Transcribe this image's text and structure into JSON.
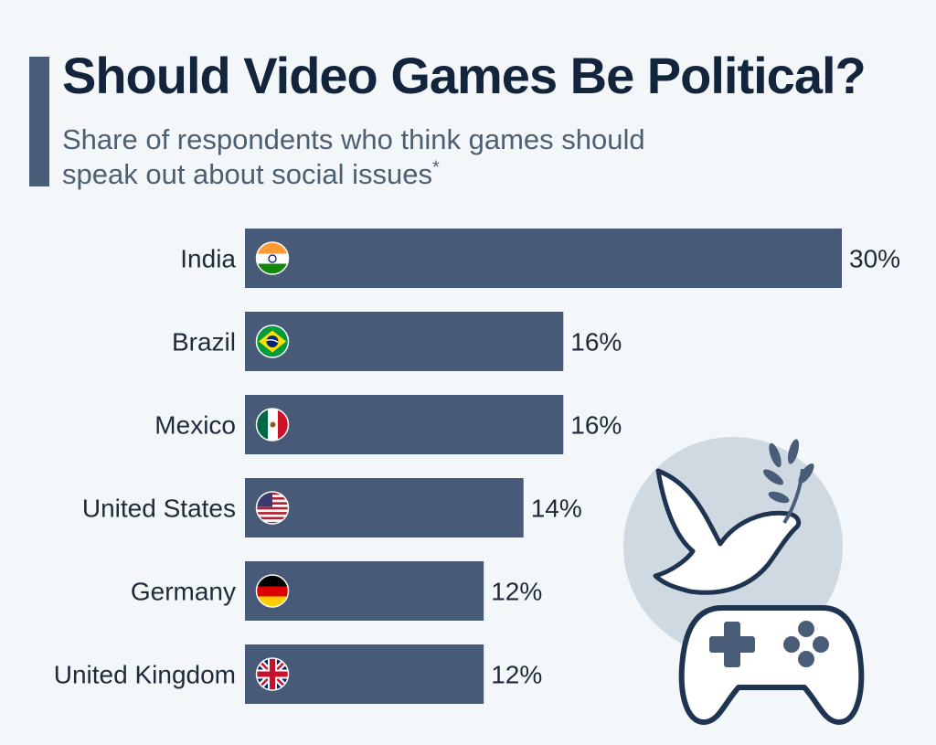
{
  "header": {
    "title": "Should Video Games Be Political?",
    "subtitle": "Share of respondents who think games should speak out about social issues",
    "subtitle_marker": "*"
  },
  "colors": {
    "bar": "#475a77",
    "accent": "#4a5d78",
    "label": "#1e2a38",
    "illustration_bg": "#cfd9e1"
  },
  "illustration": {
    "icons": [
      "dove-with-olive-branch-icon",
      "game-controller-icon"
    ]
  },
  "chart_data": {
    "type": "bar",
    "orientation": "horizontal",
    "categories": [
      "India",
      "Brazil",
      "Mexico",
      "United States",
      "Germany",
      "United Kingdom"
    ],
    "values": [
      30,
      16,
      16,
      14,
      12,
      12
    ],
    "value_labels": [
      "30%",
      "16%",
      "16%",
      "14%",
      "12%",
      "12%"
    ],
    "flags": [
      "india-flag-icon",
      "brazil-flag-icon",
      "mexico-flag-icon",
      "usa-flag-icon",
      "germany-flag-icon",
      "uk-flag-icon"
    ],
    "title": "Should Video Games Be Political?",
    "xlabel": "",
    "ylabel": "",
    "xlim": [
      0,
      30
    ],
    "grid": false,
    "legend": "none"
  }
}
